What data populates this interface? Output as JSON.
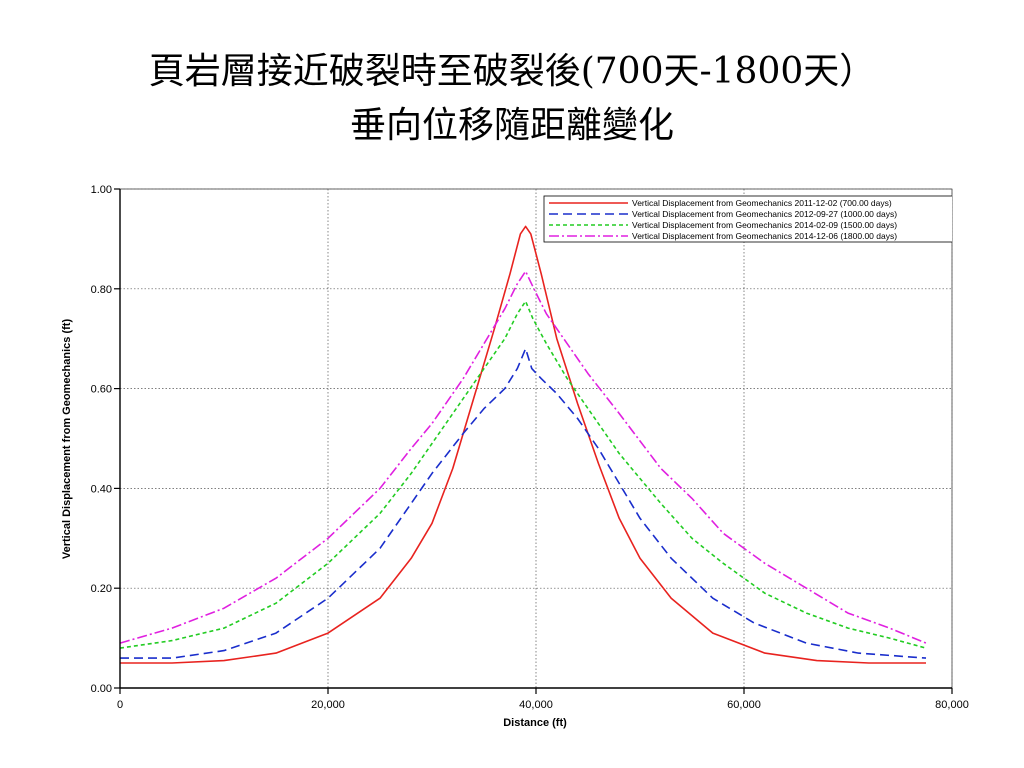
{
  "slide": {
    "title_line_1": "頁岩層接近破裂時至破裂後(700天-1800天）",
    "title_line_2": "垂向位移隨距離變化"
  },
  "chart_data": {
    "type": "line",
    "xlabel": "Distance (ft)",
    "ylabel": "Vertical Displacement from Geomechanics (ft)",
    "xlim": [
      0,
      80000
    ],
    "ylim": [
      0,
      1.0
    ],
    "xticks": [
      0,
      20000,
      40000,
      60000,
      80000
    ],
    "xtick_labels": [
      "0",
      "20,000",
      "40,000",
      "60,000",
      "80,000"
    ],
    "yticks": [
      0,
      0.2,
      0.4,
      0.6,
      0.8,
      1.0
    ],
    "ytick_labels": [
      "0.00",
      "0.20",
      "0.40",
      "0.60",
      "0.80",
      "1.00"
    ],
    "grid": true,
    "legend_position": "top-right",
    "series": [
      {
        "name": "Vertical Displacement from Geomechanics 2011-12-02 (700.00 days)",
        "color": "#e8231f",
        "dash": "solid",
        "points": [
          [
            0,
            0.05
          ],
          [
            5000,
            0.05
          ],
          [
            10000,
            0.055
          ],
          [
            15000,
            0.07
          ],
          [
            20000,
            0.11
          ],
          [
            25000,
            0.18
          ],
          [
            28000,
            0.26
          ],
          [
            30000,
            0.33
          ],
          [
            32000,
            0.44
          ],
          [
            34000,
            0.58
          ],
          [
            36000,
            0.72
          ],
          [
            37500,
            0.83
          ],
          [
            38500,
            0.91
          ],
          [
            39000,
            0.925
          ],
          [
            39500,
            0.91
          ],
          [
            40500,
            0.83
          ],
          [
            42000,
            0.7
          ],
          [
            44000,
            0.57
          ],
          [
            46000,
            0.45
          ],
          [
            48000,
            0.34
          ],
          [
            50000,
            0.26
          ],
          [
            53000,
            0.18
          ],
          [
            57000,
            0.11
          ],
          [
            62000,
            0.07
          ],
          [
            67000,
            0.055
          ],
          [
            72000,
            0.05
          ],
          [
            77500,
            0.05
          ]
        ]
      },
      {
        "name": "Vertical Displacement from Geomechanics 2012-09-27 (1000.00 days)",
        "color": "#1a2ecc",
        "dash": "long-dash",
        "points": [
          [
            0,
            0.06
          ],
          [
            5000,
            0.06
          ],
          [
            10000,
            0.075
          ],
          [
            15000,
            0.11
          ],
          [
            20000,
            0.18
          ],
          [
            25000,
            0.28
          ],
          [
            28000,
            0.37
          ],
          [
            30000,
            0.43
          ],
          [
            33000,
            0.51
          ],
          [
            35000,
            0.56
          ],
          [
            37000,
            0.6
          ],
          [
            38200,
            0.64
          ],
          [
            39000,
            0.68
          ],
          [
            39600,
            0.64
          ],
          [
            40500,
            0.62
          ],
          [
            42000,
            0.59
          ],
          [
            44000,
            0.54
          ],
          [
            46000,
            0.48
          ],
          [
            48000,
            0.41
          ],
          [
            50000,
            0.34
          ],
          [
            53000,
            0.26
          ],
          [
            57000,
            0.18
          ],
          [
            61000,
            0.13
          ],
          [
            66000,
            0.09
          ],
          [
            71000,
            0.07
          ],
          [
            77500,
            0.06
          ]
        ]
      },
      {
        "name": "Vertical Displacement from Geomechanics 2014-02-09 (1500.00 days)",
        "color": "#22cc22",
        "dash": "short-dash",
        "points": [
          [
            0,
            0.08
          ],
          [
            5000,
            0.095
          ],
          [
            10000,
            0.12
          ],
          [
            15000,
            0.17
          ],
          [
            20000,
            0.25
          ],
          [
            25000,
            0.35
          ],
          [
            28000,
            0.43
          ],
          [
            30000,
            0.49
          ],
          [
            33000,
            0.58
          ],
          [
            35000,
            0.64
          ],
          [
            37000,
            0.7
          ],
          [
            38200,
            0.75
          ],
          [
            39000,
            0.775
          ],
          [
            39700,
            0.74
          ],
          [
            41000,
            0.69
          ],
          [
            43000,
            0.62
          ],
          [
            45000,
            0.56
          ],
          [
            48000,
            0.47
          ],
          [
            52000,
            0.37
          ],
          [
            55000,
            0.3
          ],
          [
            58000,
            0.25
          ],
          [
            62000,
            0.19
          ],
          [
            66000,
            0.15
          ],
          [
            70000,
            0.12
          ],
          [
            74000,
            0.1
          ],
          [
            77500,
            0.08
          ]
        ]
      },
      {
        "name": "Vertical Displacement from Geomechanics 2014-12-06 (1800.00 days)",
        "color": "#e020e0",
        "dash": "dash-dot",
        "points": [
          [
            0,
            0.09
          ],
          [
            5000,
            0.12
          ],
          [
            10000,
            0.16
          ],
          [
            15000,
            0.22
          ],
          [
            20000,
            0.3
          ],
          [
            25000,
            0.4
          ],
          [
            28000,
            0.48
          ],
          [
            30000,
            0.53
          ],
          [
            33000,
            0.62
          ],
          [
            35000,
            0.69
          ],
          [
            37000,
            0.76
          ],
          [
            38200,
            0.81
          ],
          [
            39000,
            0.835
          ],
          [
            39800,
            0.8
          ],
          [
            41000,
            0.75
          ],
          [
            43000,
            0.69
          ],
          [
            45000,
            0.63
          ],
          [
            48000,
            0.55
          ],
          [
            52000,
            0.44
          ],
          [
            55000,
            0.38
          ],
          [
            58000,
            0.31
          ],
          [
            62000,
            0.25
          ],
          [
            66000,
            0.2
          ],
          [
            70000,
            0.15
          ],
          [
            74000,
            0.12
          ],
          [
            77500,
            0.09
          ]
        ]
      }
    ]
  }
}
